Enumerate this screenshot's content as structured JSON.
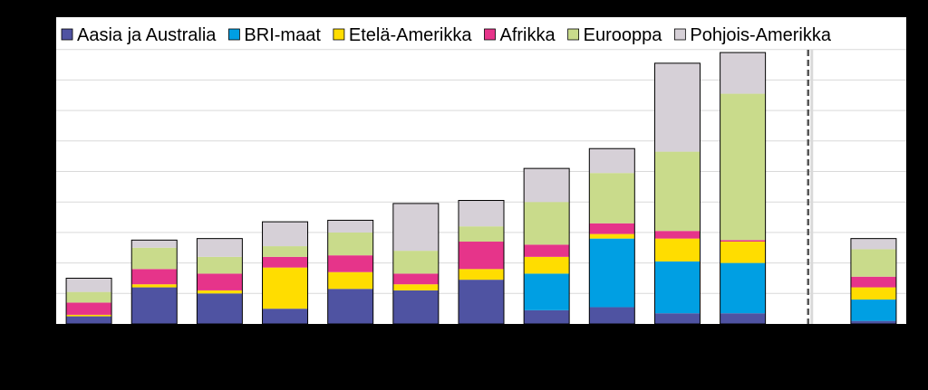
{
  "chart_data": {
    "type": "bar",
    "stacked": true,
    "legend_position": "top",
    "grid": true,
    "ylim": [
      0,
      9
    ],
    "categories": [
      "",
      "",
      "",
      "",
      "",
      "",
      "",
      "",
      "",
      "",
      "",
      "",
      ""
    ],
    "series": [
      {
        "name": "Aasia ja Australia",
        "color": "#4F53A2",
        "values": [
          0.25,
          1.2,
          1.0,
          0.5,
          1.15,
          1.1,
          1.45,
          0.45,
          0.55,
          0.35,
          0.35,
          null,
          0.1
        ]
      },
      {
        "name": "BRI-maat",
        "color": "#009FE3",
        "values": [
          0,
          0,
          0,
          0,
          0,
          0,
          0,
          1.2,
          2.25,
          1.7,
          1.65,
          null,
          0.7
        ]
      },
      {
        "name": "Etelä-Amerikka",
        "color": "#FFDD00",
        "values": [
          0.05,
          0.1,
          0.1,
          1.35,
          0.55,
          0.2,
          0.35,
          0.55,
          0.15,
          0.75,
          0.7,
          null,
          0.4
        ]
      },
      {
        "name": "Afrikka",
        "color": "#E6348A",
        "values": [
          0.4,
          0.5,
          0.55,
          0.35,
          0.55,
          0.35,
          0.9,
          0.4,
          0.35,
          0.25,
          0.05,
          null,
          0.35
        ]
      },
      {
        "name": "Eurooppa",
        "color": "#C9DB8B",
        "values": [
          0.35,
          0.7,
          0.55,
          0.35,
          0.75,
          0.75,
          0.5,
          1.4,
          1.65,
          2.6,
          4.8,
          null,
          0.9
        ]
      },
      {
        "name": "Pohjois-Amerikka",
        "color": "#D6D0D7",
        "values": [
          0.45,
          0.25,
          0.6,
          0.8,
          0.4,
          1.55,
          0.85,
          1.1,
          0.8,
          2.9,
          1.35,
          null,
          0.35
        ]
      }
    ],
    "divider_after_index": 11
  },
  "colors": {
    "background": "#000000",
    "plot_background": "#FFFFFF",
    "gridline": "#D9D9D9",
    "bar_outline": "#000000",
    "divider": "#555555"
  }
}
